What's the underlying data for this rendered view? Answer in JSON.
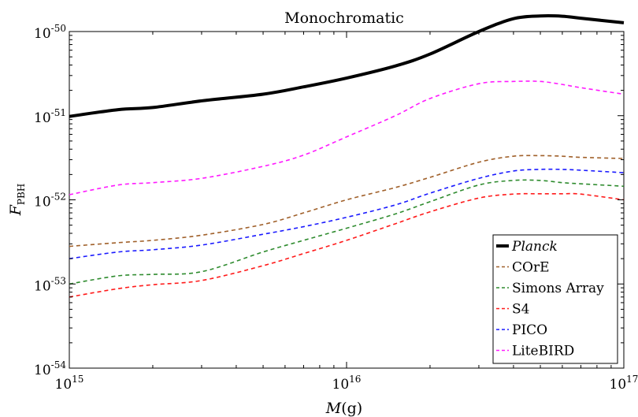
{
  "chart_data": {
    "type": "line",
    "title": "Monochromatic",
    "xlabel": "M(g)",
    "ylabel": "F_PBH",
    "xscale": "log",
    "yscale": "log",
    "xlim": [
      1000000000000000.0,
      1e+17
    ],
    "ylim": [
      1e-54,
      1e-50
    ],
    "x_ticks": [
      "10^15",
      "10^16",
      "10^17"
    ],
    "y_ticks": [
      "10^-54",
      "10^-53",
      "10^-52",
      "10^-51",
      "10^-50"
    ],
    "grid": false,
    "legend_position": "bottom-right",
    "series": [
      {
        "name": "Planck",
        "color": "#000000",
        "style": "solid",
        "x": [
          1000000000000000.0,
          1500000000000000.0,
          2000000000000000.0,
          3000000000000000.0,
          5000000000000000.0,
          7000000000000000.0,
          1e+16,
          1.5e+16,
          2e+16,
          3e+16,
          4e+16,
          5e+16,
          6e+16,
          7e+16,
          1e+17
        ],
        "y": [
          9.8e-52,
          1.18e-51,
          1.25e-51,
          1.5e-51,
          1.8e-51,
          2.2e-51,
          2.8e-51,
          3.9e-51,
          5.4e-51,
          1e-50,
          1.42e-50,
          1.53e-50,
          1.52e-50,
          1.44e-50,
          1.27e-50
        ]
      },
      {
        "name": "CОrE",
        "color": "#a0602a",
        "style": "dashed",
        "x": [
          1000000000000000.0,
          1500000000000000.0,
          2000000000000000.0,
          3000000000000000.0,
          5000000000000000.0,
          7000000000000000.0,
          1e+16,
          1.5e+16,
          2e+16,
          3e+16,
          4e+16,
          5e+16,
          6e+16,
          7e+16,
          1e+17
        ],
        "y": [
          2.8e-53,
          3.1e-53,
          3.3e-53,
          3.8e-53,
          5.1e-53,
          7e-53,
          1e-52,
          1.4e-52,
          1.85e-52,
          2.8e-52,
          3.3e-52,
          3.35e-52,
          3.3e-52,
          3.2e-52,
          3.1e-52
        ]
      },
      {
        "name": "Simons Array",
        "color": "#2e8b2e",
        "style": "dashed",
        "x": [
          1000000000000000.0,
          1500000000000000.0,
          2000000000000000.0,
          3000000000000000.0,
          5000000000000000.0,
          7000000000000000.0,
          1e+16,
          1.5e+16,
          2e+16,
          3e+16,
          4e+16,
          5e+16,
          6e+16,
          7e+16,
          1e+17
        ],
        "y": [
          1e-53,
          1.25e-53,
          1.3e-53,
          1.4e-53,
          2.4e-53,
          3.3e-53,
          4.6e-53,
          6.8e-53,
          9.5e-53,
          1.5e-52,
          1.7e-52,
          1.7e-52,
          1.6e-52,
          1.55e-52,
          1.45e-52
        ]
      },
      {
        "name": "S4",
        "color": "#ff1a1a",
        "style": "dashed",
        "x": [
          1000000000000000.0,
          1500000000000000.0,
          2000000000000000.0,
          3000000000000000.0,
          5000000000000000.0,
          7000000000000000.0,
          1e+16,
          1.5e+16,
          2e+16,
          3e+16,
          4e+16,
          5e+16,
          6e+16,
          7e+16,
          1e+17
        ],
        "y": [
          7e-54,
          8.8e-54,
          9.8e-54,
          1.1e-53,
          1.65e-53,
          2.3e-53,
          3.3e-53,
          5.2e-53,
          7.2e-53,
          1.05e-52,
          1.17e-52,
          1.18e-52,
          1.18e-52,
          1.17e-52,
          1e-52
        ]
      },
      {
        "name": "PICO",
        "color": "#1a1aff",
        "style": "dashed",
        "x": [
          1000000000000000.0,
          1500000000000000.0,
          2000000000000000.0,
          3000000000000000.0,
          5000000000000000.0,
          7000000000000000.0,
          1e+16,
          1.5e+16,
          2e+16,
          3e+16,
          4e+16,
          5e+16,
          6e+16,
          7e+16,
          1e+17
        ],
        "y": [
          2e-53,
          2.4e-53,
          2.55e-53,
          2.9e-53,
          3.9e-53,
          4.8e-53,
          6.2e-53,
          8.7e-53,
          1.2e-52,
          1.8e-52,
          2.2e-52,
          2.3e-52,
          2.3e-52,
          2.25e-52,
          2.1e-52
        ]
      },
      {
        "name": "LiteBIRD",
        "color": "#ff1aff",
        "style": "dashed",
        "x": [
          1000000000000000.0,
          1500000000000000.0,
          2000000000000000.0,
          3000000000000000.0,
          5000000000000000.0,
          7000000000000000.0,
          1e+16,
          1.5e+16,
          2e+16,
          3e+16,
          4e+16,
          5e+16,
          6e+16,
          7e+16,
          1e+17
        ],
        "y": [
          1.15e-52,
          1.5e-52,
          1.6e-52,
          1.8e-52,
          2.5e-52,
          3.4e-52,
          5.6e-52,
          1e-51,
          1.6e-51,
          2.4e-51,
          2.55e-51,
          2.55e-51,
          2.35e-51,
          2.15e-51,
          1.8e-51
        ]
      }
    ]
  }
}
